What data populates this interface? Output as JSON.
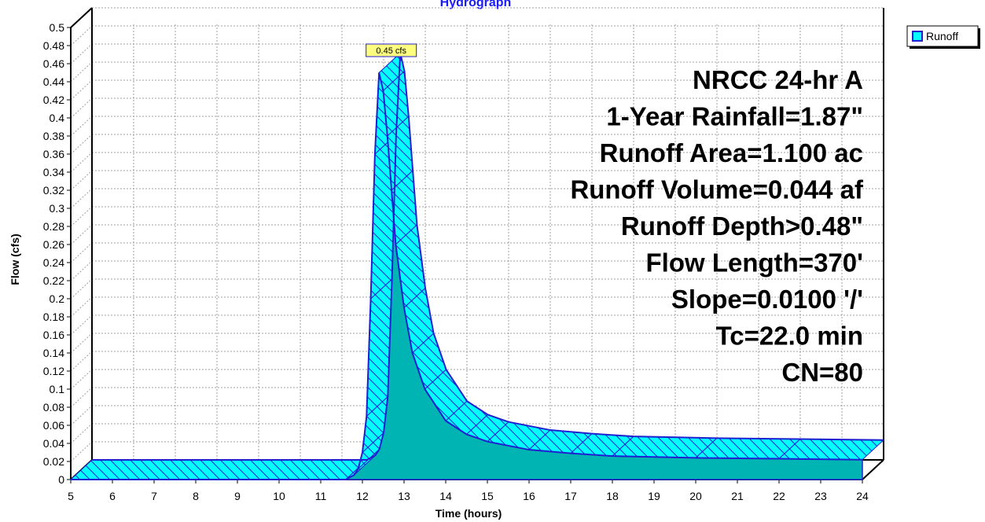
{
  "chart_data": {
    "type": "area",
    "title": "Hydrograph",
    "xlabel": "Time  (hours)",
    "ylabel": "Flow  (cfs)",
    "xlim": [
      5,
      24
    ],
    "ylim": [
      0,
      0.5
    ],
    "x_ticks": [
      5,
      6,
      7,
      8,
      9,
      10,
      11,
      12,
      13,
      14,
      15,
      16,
      17,
      18,
      19,
      20,
      21,
      22,
      23,
      24
    ],
    "y_ticks": [
      0,
      0.02,
      0.04,
      0.06,
      0.08,
      0.1,
      0.12,
      0.14,
      0.16,
      0.18,
      0.2,
      0.22,
      0.24,
      0.26,
      0.28,
      0.3,
      0.32,
      0.34,
      0.36,
      0.38,
      0.4,
      0.42,
      0.44,
      0.46,
      0.48,
      0.5
    ],
    "grid": true,
    "legend_position": "top-right",
    "series": [
      {
        "name": "Runoff",
        "color": "#00ffff",
        "x": [
          5,
          11.6,
          11.8,
          11.9,
          12.0,
          12.1,
          12.2,
          12.3,
          12.4,
          12.5,
          12.6,
          12.7,
          12.8,
          13.0,
          13.2,
          13.5,
          14.0,
          14.5,
          15.0,
          16.0,
          17.0,
          18.0,
          20.0,
          22.0,
          24.0
        ],
        "y": [
          0,
          0,
          0.005,
          0.012,
          0.03,
          0.07,
          0.2,
          0.36,
          0.45,
          0.43,
          0.38,
          0.32,
          0.26,
          0.19,
          0.14,
          0.1,
          0.065,
          0.05,
          0.042,
          0.033,
          0.029,
          0.026,
          0.024,
          0.023,
          0.022
        ]
      }
    ],
    "peak_annotation": {
      "x": 12.4,
      "y": 0.45,
      "label": "0.45 cfs"
    },
    "info_lines": [
      "NRCC 24-hr A",
      "1-Year Rainfall=1.87\"",
      "Runoff Area=1.100 ac",
      "Runoff Volume=0.044 af",
      "Runoff Depth>0.48\"",
      "Flow Length=370'",
      "Slope=0.0100 '/'",
      "Tc=22.0 min",
      "CN=80"
    ],
    "colors": {
      "fill": "#00ffff",
      "fill_dark": "#00b4b4",
      "outline": "#2020d0",
      "title": "#1a1aff",
      "grid": "#a0a0a0"
    }
  }
}
